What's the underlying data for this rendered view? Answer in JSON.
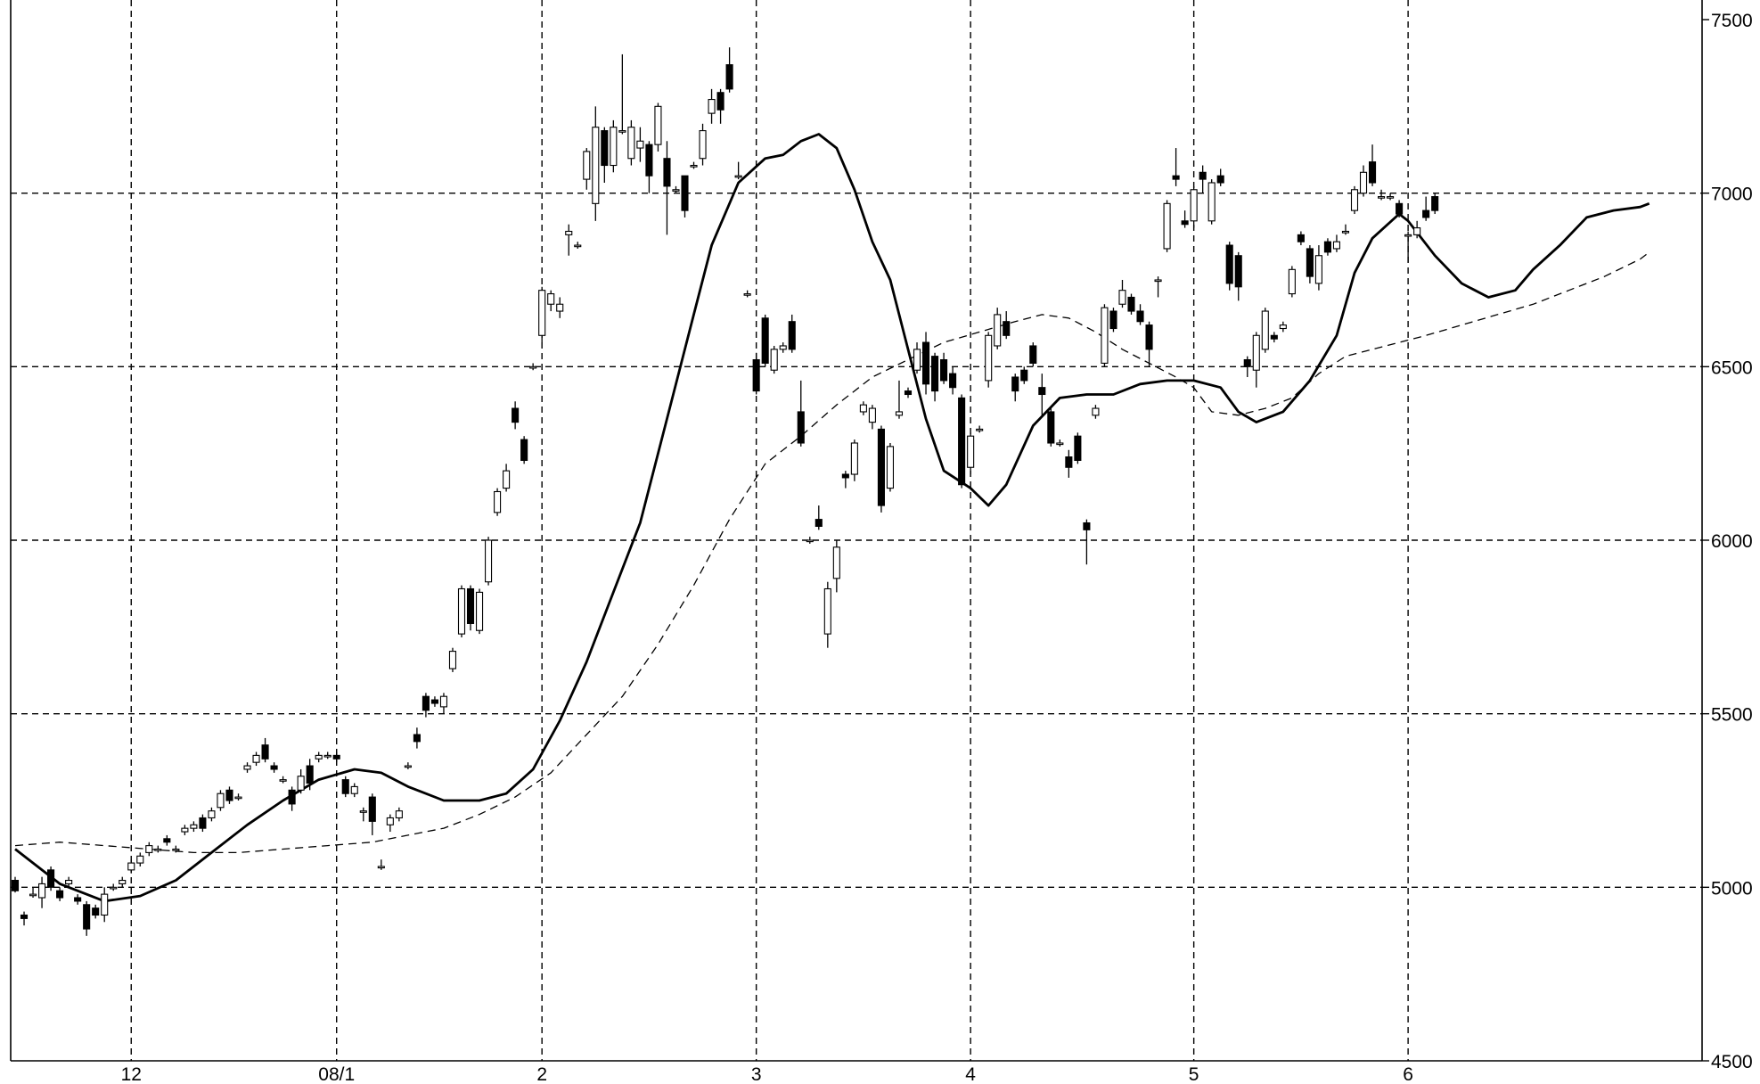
{
  "chart_data": {
    "type": "candlestick",
    "title": "",
    "xlabel": "",
    "ylabel": "",
    "ylim": [
      4500,
      7500
    ],
    "grid": true,
    "y_ticks": [
      "4500",
      "5000",
      "5500",
      "6000",
      "6500",
      "7000",
      "7500"
    ],
    "x_ticks": [
      {
        "label": "12",
        "index": 13
      },
      {
        "label": "08/1",
        "index": 36
      },
      {
        "label": "2",
        "index": 59
      },
      {
        "label": "3",
        "index": 83
      },
      {
        "label": "4",
        "index": 107
      },
      {
        "label": "5",
        "index": 132
      },
      {
        "label": "6",
        "index": 156
      }
    ],
    "candles": [
      [
        5020,
        4990,
        5030,
        4985
      ],
      [
        4920,
        4910,
        4930,
        4890
      ],
      [
        4980,
        4980,
        5000,
        4970
      ],
      [
        4970,
        5010,
        5030,
        4940
      ],
      [
        5050,
        5000,
        5060,
        4990
      ],
      [
        4990,
        4970,
        5000,
        4960
      ],
      [
        5010,
        5020,
        5030,
        5000
      ],
      [
        4970,
        4960,
        4980,
        4950
      ],
      [
        4950,
        4880,
        4960,
        4860
      ],
      [
        4940,
        4920,
        4950,
        4910
      ],
      [
        4920,
        4980,
        5000,
        4900
      ],
      [
        5000,
        5000,
        5010,
        4990
      ],
      [
        5010,
        5020,
        5030,
        5000
      ],
      [
        5050,
        5070,
        5080,
        5040
      ],
      [
        5070,
        5090,
        5100,
        5060
      ],
      [
        5100,
        5120,
        5130,
        5090
      ],
      [
        5110,
        5110,
        5120,
        5100
      ],
      [
        5140,
        5130,
        5150,
        5120
      ],
      [
        5110,
        5110,
        5120,
        5100
      ],
      [
        5160,
        5170,
        5180,
        5150
      ],
      [
        5170,
        5180,
        5190,
        5160
      ],
      [
        5200,
        5170,
        5210,
        5160
      ],
      [
        5200,
        5220,
        5230,
        5190
      ],
      [
        5230,
        5270,
        5280,
        5220
      ],
      [
        5280,
        5250,
        5290,
        5240
      ],
      [
        5260,
        5260,
        5270,
        5250
      ],
      [
        5340,
        5350,
        5360,
        5330
      ],
      [
        5360,
        5380,
        5390,
        5350
      ],
      [
        5410,
        5370,
        5430,
        5360
      ],
      [
        5350,
        5340,
        5360,
        5330
      ],
      [
        5310,
        5310,
        5320,
        5300
      ],
      [
        5280,
        5240,
        5290,
        5220
      ],
      [
        5280,
        5320,
        5340,
        5270
      ],
      [
        5350,
        5300,
        5370,
        5280
      ],
      [
        5370,
        5380,
        5390,
        5360
      ],
      [
        5380,
        5380,
        5390,
        5370
      ],
      [
        5380,
        5370,
        5390,
        5360
      ],
      [
        5310,
        5270,
        5320,
        5260
      ],
      [
        5270,
        5290,
        5300,
        5260
      ],
      [
        5220,
        5220,
        5230,
        5190
      ],
      [
        5260,
        5190,
        5270,
        5150
      ],
      [
        5060,
        5060,
        5080,
        5050
      ],
      [
        5180,
        5200,
        5210,
        5160
      ],
      [
        5200,
        5220,
        5230,
        5190
      ],
      [
        5350,
        5350,
        5360,
        5340
      ],
      [
        5440,
        5420,
        5460,
        5400
      ],
      [
        5550,
        5510,
        5560,
        5490
      ],
      [
        5540,
        5530,
        5550,
        5520
      ],
      [
        5520,
        5550,
        5560,
        5500
      ],
      [
        5630,
        5680,
        5690,
        5620
      ],
      [
        5730,
        5860,
        5870,
        5720
      ],
      [
        5860,
        5760,
        5870,
        5740
      ],
      [
        5740,
        5850,
        5860,
        5730
      ],
      [
        5880,
        6000,
        6010,
        5870
      ],
      [
        6080,
        6140,
        6150,
        6070
      ],
      [
        6150,
        6200,
        6220,
        6140
      ],
      [
        6380,
        6340,
        6400,
        6320
      ],
      [
        6290,
        6230,
        6300,
        6220
      ],
      [
        6500,
        6500,
        6510,
        6490
      ],
      [
        6590,
        6720,
        6730,
        6570
      ],
      [
        6680,
        6710,
        6720,
        6660
      ],
      [
        6660,
        6680,
        6700,
        6640
      ],
      [
        6880,
        6890,
        6910,
        6820
      ],
      [
        6850,
        6850,
        6860,
        6840
      ],
      [
        7040,
        7120,
        7130,
        7010
      ],
      [
        6970,
        7190,
        7250,
        6920
      ],
      [
        7180,
        7080,
        7190,
        7030
      ],
      [
        7080,
        7190,
        7210,
        7060
      ],
      [
        7180,
        7180,
        7400,
        7170
      ],
      [
        7100,
        7190,
        7210,
        7080
      ],
      [
        7130,
        7150,
        7190,
        7090
      ],
      [
        7140,
        7050,
        7150,
        7000
      ],
      [
        7140,
        7250,
        7260,
        7120
      ],
      [
        7100,
        7020,
        7150,
        6880
      ],
      [
        7010,
        7010,
        7020,
        7000
      ],
      [
        7050,
        6950,
        7050,
        6930
      ],
      [
        7080,
        7080,
        7090,
        7070
      ],
      [
        7100,
        7180,
        7200,
        7080
      ],
      [
        7230,
        7270,
        7300,
        7200
      ],
      [
        7290,
        7240,
        7300,
        7200
      ],
      [
        7370,
        7300,
        7420,
        7290
      ],
      [
        7050,
        7050,
        7090,
        7040
      ],
      [
        6710,
        6710,
        6720,
        6700
      ],
      [
        6520,
        6430,
        6540,
        6420
      ],
      [
        6640,
        6510,
        6650,
        6500
      ],
      [
        6490,
        6550,
        6560,
        6480
      ],
      [
        6550,
        6560,
        6570,
        6540
      ],
      [
        6630,
        6550,
        6650,
        6540
      ],
      [
        6370,
        6280,
        6460,
        6270
      ],
      [
        6000,
        6000,
        6010,
        5990
      ],
      [
        6060,
        6040,
        6100,
        6030
      ],
      [
        5730,
        5860,
        5880,
        5690
      ],
      [
        5890,
        5980,
        6000,
        5850
      ],
      [
        6190,
        6180,
        6200,
        6150
      ],
      [
        6190,
        6280,
        6290,
        6170
      ],
      [
        6370,
        6390,
        6400,
        6360
      ],
      [
        6340,
        6380,
        6390,
        6320
      ],
      [
        6320,
        6100,
        6330,
        6080
      ],
      [
        6150,
        6270,
        6280,
        6140
      ],
      [
        6360,
        6370,
        6460,
        6350
      ],
      [
        6430,
        6420,
        6440,
        6410
      ],
      [
        6490,
        6550,
        6570,
        6480
      ],
      [
        6570,
        6450,
        6600,
        6420
      ],
      [
        6530,
        6430,
        6540,
        6400
      ],
      [
        6520,
        6460,
        6540,
        6450
      ],
      [
        6480,
        6440,
        6500,
        6420
      ],
      [
        6410,
        6160,
        6420,
        6150
      ],
      [
        6210,
        6300,
        6310,
        6190
      ],
      [
        6320,
        6320,
        6330,
        6310
      ],
      [
        6460,
        6590,
        6600,
        6440
      ],
      [
        6560,
        6650,
        6670,
        6550
      ],
      [
        6630,
        6590,
        6660,
        6580
      ],
      [
        6470,
        6430,
        6480,
        6400
      ],
      [
        6490,
        6460,
        6500,
        6450
      ],
      [
        6560,
        6510,
        6570,
        6500
      ],
      [
        6440,
        6420,
        6480,
        6360
      ],
      [
        6370,
        6280,
        6380,
        6270
      ],
      [
        6280,
        6280,
        6290,
        6270
      ],
      [
        6240,
        6210,
        6260,
        6180
      ],
      [
        6300,
        6230,
        6310,
        6220
      ],
      [
        6050,
        6030,
        6060,
        5930
      ],
      [
        6360,
        6380,
        6390,
        6350
      ],
      [
        6510,
        6670,
        6680,
        6500
      ],
      [
        6660,
        6610,
        6670,
        6600
      ],
      [
        6680,
        6720,
        6750,
        6670
      ],
      [
        6700,
        6660,
        6710,
        6650
      ],
      [
        6660,
        6630,
        6680,
        6620
      ],
      [
        6620,
        6550,
        6630,
        6500
      ],
      [
        6750,
        6750,
        6760,
        6700
      ],
      [
        6840,
        6970,
        6980,
        6830
      ],
      [
        7050,
        7040,
        7130,
        7020
      ],
      [
        6920,
        6910,
        6950,
        6900
      ],
      [
        6920,
        7010,
        7020,
        6900
      ],
      [
        7060,
        7040,
        7080,
        7000
      ],
      [
        6920,
        7030,
        7040,
        6910
      ],
      [
        7050,
        7030,
        7070,
        7020
      ],
      [
        6850,
        6740,
        6860,
        6720
      ],
      [
        6820,
        6730,
        6830,
        6690
      ],
      [
        6520,
        6500,
        6530,
        6470
      ],
      [
        6490,
        6590,
        6600,
        6440
      ],
      [
        6550,
        6660,
        6670,
        6540
      ],
      [
        6590,
        6580,
        6600,
        6570
      ],
      [
        6610,
        6620,
        6630,
        6600
      ],
      [
        6710,
        6780,
        6790,
        6700
      ],
      [
        6880,
        6860,
        6890,
        6850
      ],
      [
        6840,
        6760,
        6850,
        6740
      ],
      [
        6740,
        6820,
        6850,
        6720
      ],
      [
        6860,
        6830,
        6870,
        6820
      ],
      [
        6840,
        6860,
        6880,
        6830
      ],
      [
        6890,
        6890,
        6910,
        6880
      ],
      [
        6950,
        7010,
        7020,
        6940
      ],
      [
        7000,
        7060,
        7080,
        6990
      ],
      [
        7090,
        7030,
        7140,
        7020
      ],
      [
        6990,
        6990,
        7010,
        6980
      ],
      [
        6990,
        6990,
        7000,
        6980
      ],
      [
        6970,
        6940,
        6980,
        6930
      ],
      [
        6880,
        6880,
        6890,
        6800
      ],
      [
        6880,
        6900,
        6920,
        6870
      ],
      [
        6950,
        6930,
        6990,
        6920
      ],
      [
        6990,
        6950,
        7000,
        6940
      ]
    ],
    "series": [
      {
        "type": "line",
        "points": [
          [
            0,
            5110
          ],
          [
            5,
            5010
          ],
          [
            10,
            4960
          ],
          [
            14,
            4975
          ],
          [
            18,
            5020
          ],
          [
            22,
            5100
          ],
          [
            26,
            5180
          ],
          [
            30,
            5250
          ],
          [
            34,
            5310
          ],
          [
            38,
            5340
          ],
          [
            41,
            5330
          ],
          [
            44,
            5290
          ],
          [
            48,
            5250
          ],
          [
            52,
            5250
          ],
          [
            55,
            5270
          ],
          [
            58,
            5340
          ],
          [
            61,
            5480
          ],
          [
            64,
            5650
          ],
          [
            67,
            5850
          ],
          [
            70,
            6050
          ],
          [
            73,
            6350
          ],
          [
            76,
            6650
          ],
          [
            78,
            6850
          ],
          [
            81,
            7030
          ],
          [
            84,
            7100
          ],
          [
            86,
            7110
          ],
          [
            88,
            7150
          ],
          [
            90,
            7170
          ],
          [
            92,
            7130
          ],
          [
            94,
            7010
          ],
          [
            96,
            6860
          ],
          [
            98,
            6750
          ],
          [
            100,
            6550
          ],
          [
            102,
            6350
          ],
          [
            104,
            6200
          ],
          [
            107,
            6150
          ],
          [
            109,
            6100
          ],
          [
            111,
            6160
          ],
          [
            114,
            6330
          ],
          [
            117,
            6410
          ],
          [
            120,
            6420
          ],
          [
            123,
            6420
          ],
          [
            126,
            6450
          ],
          [
            129,
            6460
          ],
          [
            132,
            6460
          ],
          [
            135,
            6440
          ],
          [
            137,
            6370
          ],
          [
            139,
            6340
          ],
          [
            142,
            6370
          ],
          [
            145,
            6460
          ],
          [
            148,
            6590
          ],
          [
            150,
            6770
          ],
          [
            152,
            6870
          ],
          [
            155,
            6940
          ],
          [
            156,
            6920
          ],
          [
            159,
            6820
          ],
          [
            162,
            6740
          ],
          [
            165,
            6700
          ],
          [
            168,
            6720
          ],
          [
            170,
            6780
          ],
          [
            173,
            6850
          ],
          [
            176,
            6930
          ],
          [
            179,
            6950
          ],
          [
            182,
            6960
          ],
          [
            183,
            6970
          ]
        ]
      },
      {
        "type": "line",
        "dashed": true,
        "points": [
          [
            0,
            5120
          ],
          [
            5,
            5130
          ],
          [
            10,
            5120
          ],
          [
            15,
            5110
          ],
          [
            20,
            5100
          ],
          [
            25,
            5100
          ],
          [
            30,
            5110
          ],
          [
            35,
            5120
          ],
          [
            40,
            5130
          ],
          [
            44,
            5150
          ],
          [
            48,
            5170
          ],
          [
            52,
            5210
          ],
          [
            56,
            5260
          ],
          [
            60,
            5330
          ],
          [
            64,
            5440
          ],
          [
            68,
            5550
          ],
          [
            72,
            5700
          ],
          [
            76,
            5870
          ],
          [
            80,
            6060
          ],
          [
            84,
            6220
          ],
          [
            88,
            6300
          ],
          [
            92,
            6390
          ],
          [
            96,
            6470
          ],
          [
            100,
            6520
          ],
          [
            104,
            6570
          ],
          [
            108,
            6600
          ],
          [
            112,
            6630
          ],
          [
            115,
            6650
          ],
          [
            118,
            6640
          ],
          [
            121,
            6600
          ],
          [
            124,
            6550
          ],
          [
            127,
            6510
          ],
          [
            130,
            6470
          ],
          [
            132,
            6440
          ],
          [
            134,
            6370
          ],
          [
            137,
            6360
          ],
          [
            140,
            6380
          ],
          [
            143,
            6410
          ],
          [
            146,
            6480
          ],
          [
            149,
            6530
          ],
          [
            152,
            6550
          ],
          [
            155,
            6570
          ],
          [
            158,
            6590
          ],
          [
            162,
            6620
          ],
          [
            166,
            6650
          ],
          [
            170,
            6680
          ],
          [
            174,
            6720
          ],
          [
            178,
            6760
          ],
          [
            182,
            6810
          ],
          [
            183,
            6830
          ]
        ]
      }
    ]
  }
}
